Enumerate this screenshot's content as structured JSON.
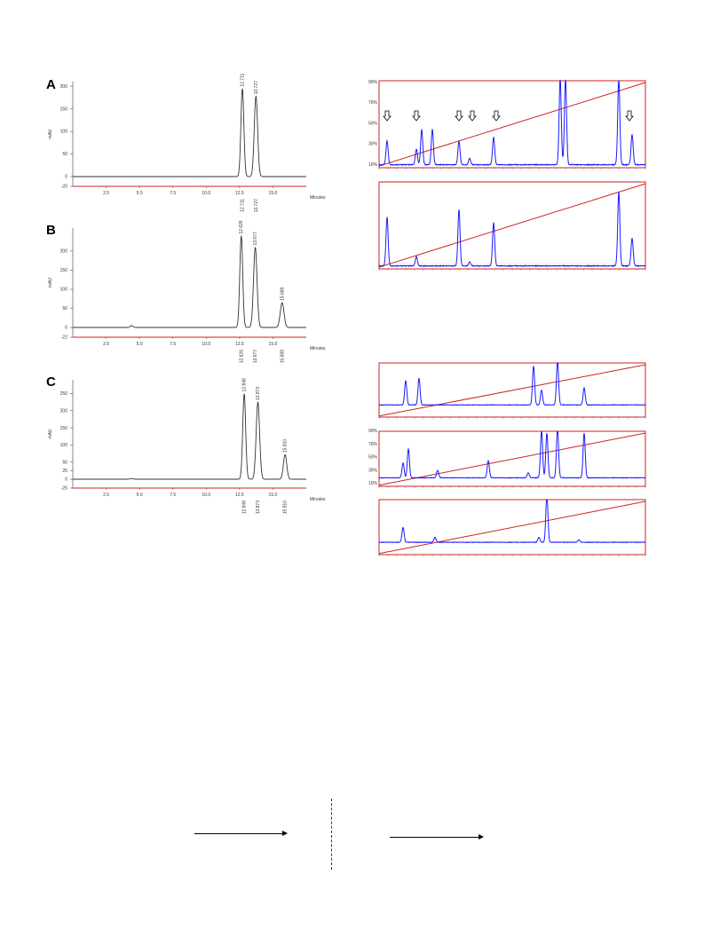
{
  "chart_data": [
    {
      "type": "line",
      "panel": "A",
      "ylabel": "mAU",
      "xlabel": "Minutes",
      "xlim": [
        0,
        17.5
      ],
      "ylim": [
        -20,
        210
      ],
      "yticks": [
        "-20",
        "0",
        "50",
        "100",
        "150",
        "200"
      ],
      "ytick_values": [
        -20,
        0,
        50,
        100,
        150,
        200
      ],
      "xticks": [
        "2.5",
        "5.0",
        "7.5",
        "10.0",
        "12.5",
        "15.0"
      ],
      "xtick_values": [
        2.5,
        5.0,
        7.5,
        10.0,
        12.5,
        15.0
      ],
      "peaks": [
        {
          "x": 12.711,
          "height": 195,
          "width": 0.22,
          "top_label": "12.711",
          "bottom_label": "12.711"
        },
        {
          "x": 13.727,
          "height": 178,
          "width": 0.25,
          "top_label": "13.727",
          "bottom_label": "13.727"
        }
      ]
    },
    {
      "type": "line",
      "panel": "B",
      "ylabel": "mAU",
      "xlabel": "Minutes",
      "xlim": [
        0,
        17.5
      ],
      "ylim": [
        -22,
        260
      ],
      "yticks": [
        "-22",
        "0",
        "50",
        "100",
        "150",
        "200"
      ],
      "ytick_values": [
        -22,
        0,
        50,
        100,
        150,
        200
      ],
      "xticks": [
        "2.5",
        "5.0",
        "7.5",
        "10.0",
        "12.5",
        "15.0"
      ],
      "xtick_values": [
        2.5,
        5.0,
        7.5,
        10.0,
        12.5,
        15.0
      ],
      "peaks": [
        {
          "x": 4.4,
          "height": 5,
          "width": 0.2,
          "top_label": "",
          "bottom_label": ""
        },
        {
          "x": 12.626,
          "height": 240,
          "width": 0.22,
          "top_label": "12.626",
          "bottom_label": "12.626"
        },
        {
          "x": 13.677,
          "height": 210,
          "width": 0.26,
          "top_label": "13.677",
          "bottom_label": "13.677"
        },
        {
          "x": 15.689,
          "height": 65,
          "width": 0.28,
          "top_label": "15.689",
          "bottom_label": "15.689"
        }
      ]
    },
    {
      "type": "line",
      "panel": "C",
      "ylabel": "mAU",
      "xlabel": "Minutes",
      "xlim": [
        0,
        17.5
      ],
      "ylim": [
        -25,
        290
      ],
      "yticks": [
        "-25",
        "0",
        "25",
        "50",
        "100",
        "150",
        "200",
        "250"
      ],
      "ytick_values": [
        -25,
        0,
        25,
        50,
        100,
        150,
        200,
        250
      ],
      "xticks": [
        "2.5",
        "5.0",
        "7.5",
        "10.0",
        "12.5",
        "15.0"
      ],
      "xtick_values": [
        2.5,
        5.0,
        7.5,
        10.0,
        12.5,
        15.0
      ],
      "peaks": [
        {
          "x": 4.4,
          "height": 2,
          "width": 0.2,
          "top_label": "",
          "bottom_label": ""
        },
        {
          "x": 12.848,
          "height": 250,
          "width": 0.22,
          "top_label": "12.848",
          "bottom_label": "12.848"
        },
        {
          "x": 13.873,
          "height": 225,
          "width": 0.26,
          "top_label": "13.873",
          "bottom_label": "13.873"
        },
        {
          "x": 15.91,
          "height": 72,
          "width": 0.25,
          "top_label": "15.910",
          "bottom_label": "15.910"
        }
      ]
    },
    {
      "type": "line",
      "panel": "right-1",
      "y_pct_labels": [
        "10%",
        "30%",
        "50%",
        "70%",
        "90%"
      ],
      "peaks": [
        [
          0.03,
          0.3
        ],
        [
          0.14,
          0.2
        ],
        [
          0.16,
          0.45
        ],
        [
          0.2,
          0.45
        ],
        [
          0.3,
          0.3
        ],
        [
          0.34,
          0.08
        ],
        [
          0.43,
          0.35
        ],
        [
          0.68,
          1.1
        ],
        [
          0.7,
          1.1
        ],
        [
          0.9,
          1.1
        ],
        [
          0.95,
          0.38
        ]
      ],
      "markers": [
        0.03,
        0.14,
        0.3,
        0.35,
        0.44,
        0.94
      ]
    },
    {
      "type": "line",
      "panel": "right-2",
      "peaks": [
        [
          0.03,
          0.62
        ],
        [
          0.14,
          0.12
        ],
        [
          0.3,
          0.72
        ],
        [
          0.34,
          0.05
        ],
        [
          0.43,
          0.55
        ],
        [
          0.9,
          0.95
        ],
        [
          0.95,
          0.35
        ]
      ]
    },
    {
      "type": "line",
      "panel": "right-3",
      "peaks": [
        [
          0.1,
          0.5
        ],
        [
          0.15,
          0.55
        ],
        [
          0.58,
          0.8
        ],
        [
          0.61,
          0.3
        ],
        [
          0.67,
          0.9
        ],
        [
          0.77,
          0.35
        ]
      ]
    },
    {
      "type": "line",
      "panel": "right-4",
      "y_pct_labels": [
        "10%",
        "30%",
        "50%",
        "70%",
        "90%"
      ],
      "peaks": [
        [
          0.09,
          0.3
        ],
        [
          0.11,
          0.58
        ],
        [
          0.22,
          0.15
        ],
        [
          0.41,
          0.35
        ],
        [
          0.56,
          0.1
        ],
        [
          0.61,
          0.95
        ],
        [
          0.63,
          0.9
        ],
        [
          0.67,
          1.0
        ],
        [
          0.77,
          0.9
        ]
      ]
    },
    {
      "type": "line",
      "panel": "right-5",
      "peaks": [
        [
          0.09,
          0.3
        ],
        [
          0.21,
          0.1
        ],
        [
          0.6,
          0.1
        ],
        [
          0.63,
          0.95
        ],
        [
          0.75,
          0.05
        ]
      ]
    }
  ],
  "labels": {
    "A": "A",
    "B": "B",
    "C": "C"
  },
  "colors": {
    "left_trace": "#333333",
    "baseline": "#cc2222",
    "right_trace": "#1a1aff",
    "frame": "#cc2222"
  }
}
